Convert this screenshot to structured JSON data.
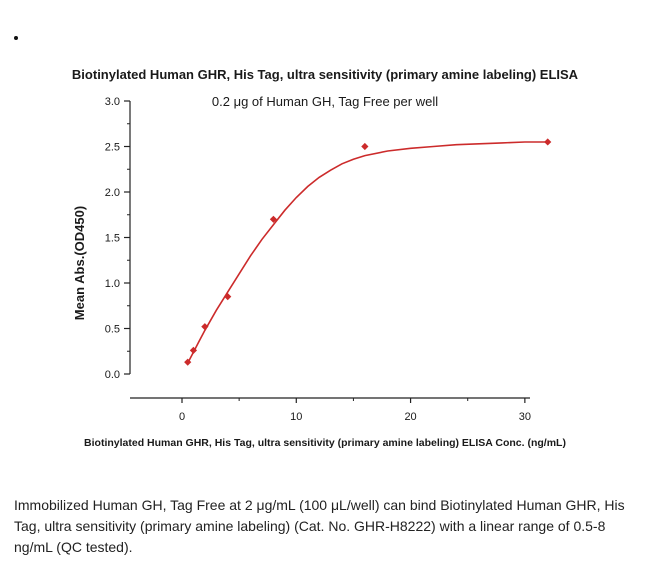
{
  "caption": "Immobilized Human GH, Tag Free at 2 μg/mL (100 μL/well) can bind Biotinylated Human GHR, His Tag, ultra sensitivity (primary amine labeling) (Cat. No. GHR-H8222) with a linear range of 0.5-8 ng/mL (QC tested).",
  "chart_data": {
    "type": "scatter",
    "title": "Biotinylated Human GHR, His Tag, ultra sensitivity (primary amine labeling) ELISA",
    "subtitle": "0.2 μg of Human GH, Tag Free per well",
    "xlabel": "Biotinylated Human GHR, His Tag, ultra sensitivity (primary amine labeling) ELISA Conc. (ng/mL)",
    "ylabel": "Mean Abs.(OD450)",
    "xlim": [
      0,
      35
    ],
    "ylim": [
      0,
      3.0
    ],
    "x_ticks": [
      0,
      10,
      20,
      30
    ],
    "x_tick_labels": [
      "0",
      "10",
      "20",
      "30"
    ],
    "y_ticks": [
      0.0,
      0.5,
      1.0,
      1.5,
      2.0,
      2.5,
      3.0
    ],
    "y_tick_labels": [
      "0.0",
      "0.5",
      "1.0",
      "1.5",
      "2.0",
      "2.5",
      "3.0"
    ],
    "grid": false,
    "marker_color": "#cc2b2b",
    "line_color": "#cc2b2b",
    "points": [
      {
        "x": 0.5,
        "y": 0.13
      },
      {
        "x": 1.0,
        "y": 0.26
      },
      {
        "x": 2.0,
        "y": 0.52
      },
      {
        "x": 4.0,
        "y": 0.85
      },
      {
        "x": 8.0,
        "y": 1.7
      },
      {
        "x": 16.0,
        "y": 2.5
      },
      {
        "x": 32.0,
        "y": 2.55
      }
    ],
    "fit_curve": {
      "x": [
        0.5,
        1,
        1.5,
        2,
        3,
        4,
        5,
        6,
        7,
        8,
        9,
        10,
        11,
        12,
        13,
        14,
        15,
        16,
        18,
        20,
        22,
        24,
        26,
        28,
        30,
        32
      ],
      "y": [
        0.12,
        0.24,
        0.36,
        0.48,
        0.7,
        0.9,
        1.1,
        1.3,
        1.48,
        1.64,
        1.8,
        1.94,
        2.06,
        2.16,
        2.24,
        2.31,
        2.36,
        2.4,
        2.45,
        2.48,
        2.5,
        2.52,
        2.53,
        2.54,
        2.55,
        2.55
      ]
    }
  }
}
